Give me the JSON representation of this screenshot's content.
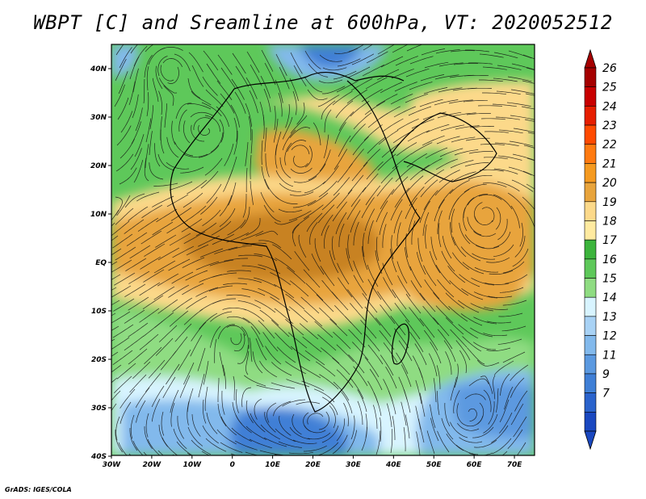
{
  "title": "WBPT [C] and Sreamline at 600hPa, VT: 2020052512",
  "credit": "GrADS: IGES/COLA",
  "map": {
    "lon_ticks": [
      "30W",
      "20W",
      "10W",
      "0",
      "10E",
      "20E",
      "30E",
      "40E",
      "50E",
      "60E",
      "70E"
    ],
    "lat_ticks": [
      "40N",
      "30N",
      "20N",
      "10N",
      "EQ",
      "10S",
      "20S",
      "30S",
      "40S"
    ]
  },
  "colorbar": {
    "labels": [
      "26",
      "25",
      "24",
      "23",
      "22",
      "21",
      "20",
      "19",
      "18",
      "17",
      "16",
      "15",
      "14",
      "13",
      "12",
      "11",
      "9",
      "7"
    ],
    "colors": [
      "#a50000",
      "#c80000",
      "#e61e00",
      "#ff4a00",
      "#ff7a10",
      "#f59a20",
      "#e8a43c",
      "#fcd98a",
      "#ffeaa0",
      "#3cb43c",
      "#5ec85a",
      "#8fdc82",
      "#d8f4ff",
      "#a8d2f5",
      "#82b9ec",
      "#5b99e0",
      "#3f7fd6",
      "#2a63cc",
      "#1a48c0"
    ],
    "top_arrow_color": "#a50000",
    "bottom_arrow_color": "#1a48c0"
  },
  "field_colors": {
    "cold": "#3f7fd6",
    "cool": "#82b9ec",
    "mild": "#d8f4ff",
    "green": "#5ec85a",
    "dark_green": "#3cb43c",
    "light_green": "#8fdc82",
    "warm": "#fcd98a",
    "orange": "#e8a43c",
    "hot": "#c88222"
  }
}
